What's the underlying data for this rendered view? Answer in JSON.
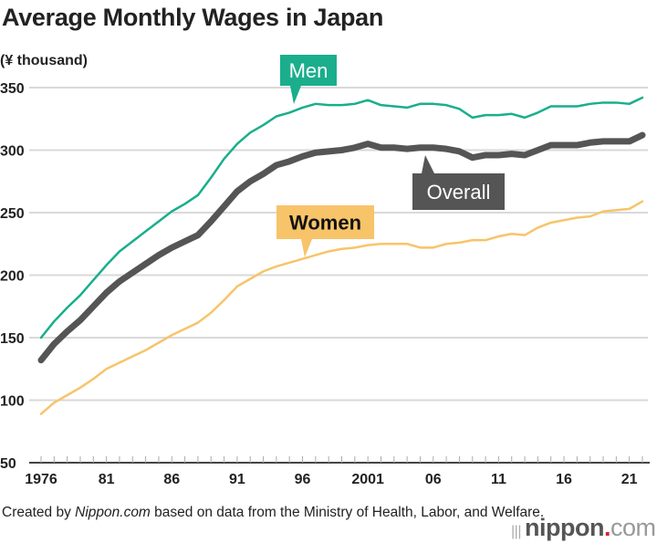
{
  "chart_data": {
    "type": "line",
    "title": "Average Monthly Wages in Japan",
    "ylabel": "(¥ thousand)",
    "xlabel": "",
    "ylim": [
      50,
      350
    ],
    "yticks": [
      50,
      100,
      150,
      200,
      250,
      300,
      350
    ],
    "xlim": [
      1976,
      2022
    ],
    "xtick_years": [
      1976,
      1981,
      1986,
      1991,
      1996,
      2001,
      2006,
      2011,
      2016,
      2021
    ],
    "xtick_labels": [
      "1976",
      "81",
      "86",
      "91",
      "96",
      "2001",
      "06",
      "11",
      "16",
      "21"
    ],
    "grid": true,
    "legend": "callout labels on lines",
    "x": [
      1976,
      1977,
      1978,
      1979,
      1980,
      1981,
      1982,
      1983,
      1984,
      1985,
      1986,
      1987,
      1988,
      1989,
      1990,
      1991,
      1992,
      1993,
      1994,
      1995,
      1996,
      1997,
      1998,
      1999,
      2000,
      2001,
      2002,
      2003,
      2004,
      2005,
      2006,
      2007,
      2008,
      2009,
      2010,
      2011,
      2012,
      2013,
      2014,
      2015,
      2016,
      2017,
      2018,
      2019,
      2020,
      2021,
      2022
    ],
    "series": [
      {
        "name": "Men",
        "color": "#1aae8c",
        "text_color": "#ffffff",
        "values": [
          150,
          163,
          174,
          184,
          196,
          208,
          219,
          227,
          235,
          243,
          251,
          257,
          264,
          278,
          293,
          305,
          314,
          320,
          327,
          330,
          334,
          337,
          336,
          336,
          337,
          340,
          336,
          335,
          334,
          337,
          337,
          336,
          333,
          326,
          328,
          328,
          329,
          326,
          330,
          335,
          335,
          335,
          337,
          338,
          338,
          337,
          342
        ]
      },
      {
        "name": "Overall",
        "color": "#555555",
        "text_color": "#ffffff",
        "values": [
          132,
          145,
          155,
          164,
          175,
          186,
          195,
          202,
          209,
          216,
          222,
          227,
          232,
          243,
          255,
          267,
          275,
          281,
          288,
          291,
          295,
          298,
          299,
          300,
          302,
          305,
          302,
          302,
          301,
          302,
          302,
          301,
          299,
          294,
          296,
          296,
          297,
          296,
          300,
          304,
          304,
          304,
          306,
          307,
          307,
          307,
          312
        ]
      },
      {
        "name": "Women",
        "color": "#f7c46a",
        "text_color": "#111111",
        "values": [
          89,
          98,
          104,
          110,
          117,
          125,
          130,
          135,
          140,
          146,
          152,
          157,
          162,
          170,
          180,
          191,
          197,
          203,
          207,
          210,
          213,
          216,
          219,
          221,
          222,
          224,
          225,
          225,
          225,
          222,
          222,
          225,
          226,
          228,
          228,
          231,
          233,
          232,
          238,
          242,
          244,
          246,
          247,
          251,
          252,
          253,
          259
        ]
      }
    ]
  },
  "footer": {
    "note_prefix": "Created by ",
    "note_source": "Nippon.com",
    "note_suffix": " based on data from the Ministry of Health, Labor, and Welfare.",
    "logo": "nippon.com"
  }
}
